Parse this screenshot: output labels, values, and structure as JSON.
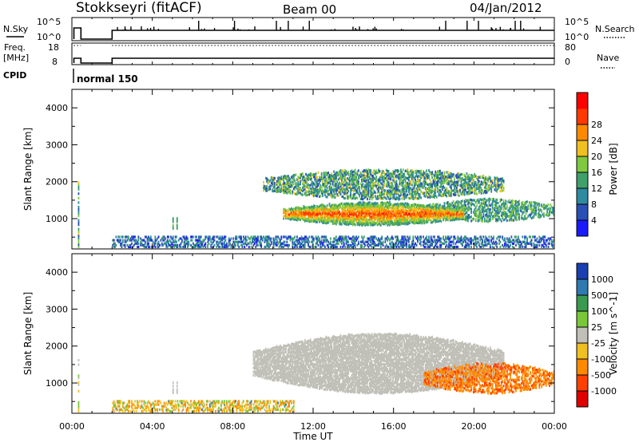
{
  "header": {
    "station": "Stokkseyri (fitACF)",
    "beam": "Beam 00",
    "date": "04/Jan/2012"
  },
  "nsky_panel": {
    "left_label": "N.Sky",
    "left_ticks": [
      "10^5",
      "10^0"
    ],
    "right_ticks": [
      "10^5",
      "10^0"
    ],
    "right_label": "N.Search"
  },
  "freq_panel": {
    "left_label_1": "Freq.",
    "left_label_2": "[MHz]",
    "left_ticks": [
      "18",
      "8"
    ],
    "right_ticks": [
      "80",
      "0"
    ],
    "right_label": "Nave"
  },
  "cpid_panel": {
    "label": "CPID",
    "value": "normal 150"
  },
  "chart_data": [
    {
      "type": "heatmap",
      "title": "",
      "xlabel": "Time UT",
      "ylabel": "Slant Range [km]",
      "xlim_hours": [
        0,
        24
      ],
      "ylim_km": [
        180,
        4500
      ],
      "x_ticks": [
        "00:00",
        "04:00",
        "08:00",
        "12:00",
        "16:00",
        "20:00",
        "00:00"
      ],
      "y_ticks": [
        "1000",
        "2000",
        "3000",
        "4000"
      ],
      "colorbar": {
        "label": "Power [dB]",
        "ticks": [
          "4",
          "8",
          "12",
          "16",
          "20",
          "24",
          "28"
        ],
        "range": [
          0,
          30
        ],
        "colors": [
          "#1a1aff",
          "#2a4fb5",
          "#2f8aa0",
          "#3fa06a",
          "#7fc83f",
          "#f0c020",
          "#ff8a00",
          "#ff3a00",
          "#ff0000"
        ]
      },
      "features": [
        {
          "name": "main_echo_band",
          "start_h": 10.5,
          "end_h": 19.5,
          "range_km": [
            800,
            1400
          ],
          "power_db": 28
        },
        {
          "name": "upper_echo_band",
          "start_h": 9.5,
          "end_h": 21.5,
          "range_km": [
            1500,
            2300
          ],
          "power_db": 14
        },
        {
          "name": "low_range_clutter",
          "start_h": 2.0,
          "end_h": 24.0,
          "range_km": [
            200,
            500
          ],
          "power_db": 6
        },
        {
          "name": "evening_band",
          "start_h": 17.5,
          "end_h": 24.0,
          "range_km": [
            900,
            1500
          ],
          "power_db": 10
        }
      ]
    },
    {
      "type": "heatmap",
      "title": "",
      "xlabel": "Time UT",
      "ylabel": "Slant Range [km]",
      "xlim_hours": [
        0,
        24
      ],
      "ylim_km": [
        180,
        4500
      ],
      "x_ticks": [
        "00:00",
        "04:00",
        "08:00",
        "12:00",
        "16:00",
        "20:00",
        "00:00"
      ],
      "y_ticks": [
        "1000",
        "2000",
        "3000",
        "4000"
      ],
      "colorbar": {
        "label": "Velocity [m s^-1]",
        "ticks": [
          "1000",
          "500",
          "100",
          "25",
          "-25",
          "-100",
          "-500",
          "-1000"
        ],
        "range": [
          -1000,
          1000
        ],
        "colors": [
          "#1a3fb0",
          "#2f7ab0",
          "#3a9a50",
          "#7ac83a",
          "#c0c0b8",
          "#f0c020",
          "#ff8a00",
          "#ff4000",
          "#e00000"
        ]
      },
      "features": [
        {
          "name": "ground_scatter_region",
          "start_h": 9.0,
          "end_h": 21.5,
          "range_km": [
            700,
            2300
          ],
          "velocity_ms": 0
        },
        {
          "name": "low_range_clutter",
          "start_h": 2.0,
          "end_h": 11.0,
          "range_km": [
            200,
            500
          ],
          "velocity_ms": -60
        },
        {
          "name": "evening_flow",
          "start_h": 17.5,
          "end_h": 24.0,
          "range_km": [
            700,
            1500
          ],
          "velocity_ms": -300
        }
      ]
    }
  ]
}
